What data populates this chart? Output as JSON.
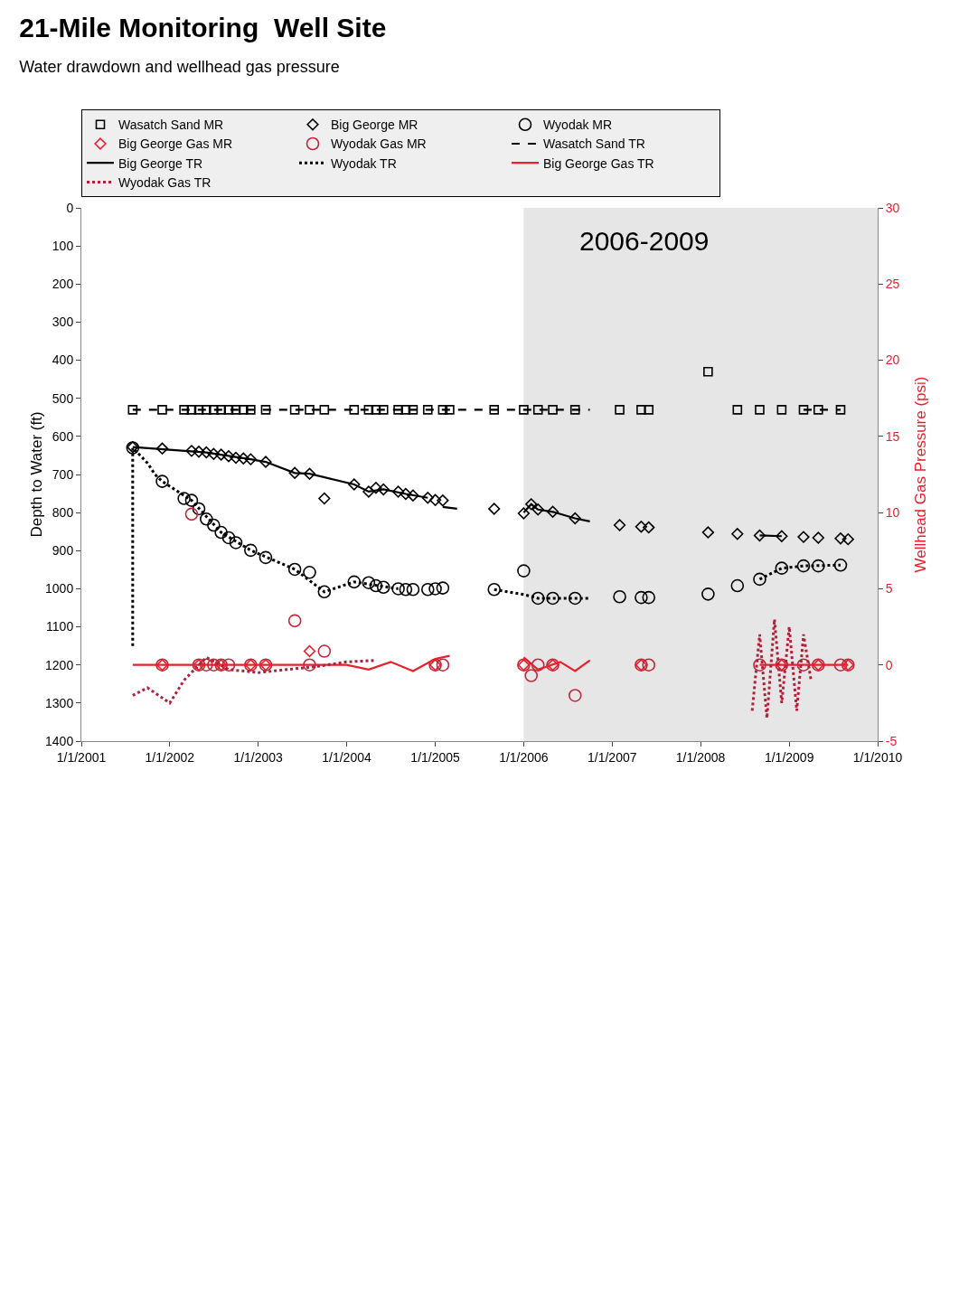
{
  "chart_data": {
    "type": "line",
    "title": "21-Mile Monitoring  Well Site",
    "subtitle": "Water drawdown and wellhead gas pressure",
    "ylabel": "Depth to Water (ft)",
    "y2label": "Wellhead Gas Pressure (psi)",
    "xlim": [
      "2001-01",
      "2010-01"
    ],
    "xticks": [
      {
        "value": "2001-01",
        "label": "1/1/2001"
      },
      {
        "value": "2002-01",
        "label": "1/1/2002"
      },
      {
        "value": "2003-01",
        "label": "1/1/2003"
      },
      {
        "value": "2004-01",
        "label": "1/1/2004"
      },
      {
        "value": "2005-01",
        "label": "1/1/2005"
      },
      {
        "value": "2006-01",
        "label": "1/1/2006"
      },
      {
        "value": "2007-01",
        "label": "1/1/2007"
      },
      {
        "value": "2008-01",
        "label": "1/1/2008"
      },
      {
        "value": "2009-01",
        "label": "1/1/2009"
      },
      {
        "value": "2010-01",
        "label": "1/1/2010"
      }
    ],
    "ylim": [
      1400,
      0
    ],
    "yticks": [
      0,
      100,
      200,
      300,
      400,
      500,
      600,
      700,
      800,
      900,
      1000,
      1100,
      1200,
      1300,
      1400
    ],
    "y2lim": [
      -5,
      30
    ],
    "y2ticks": [
      -5,
      0,
      5,
      10,
      15,
      20,
      25,
      30
    ],
    "legend": "top left",
    "bands": [
      {
        "axis": "x",
        "from": "2006-01",
        "to": "2010-01",
        "label": "2006-2009",
        "color": "#e6e6e6"
      }
    ],
    "series": [
      {
        "name": "Wasatch Sand MR",
        "type": "scatter",
        "marker": "square",
        "color": "#000000",
        "x": [
          "2001-08",
          "2001-12",
          "2002-03",
          "2002-04",
          "2002-05",
          "2002-06",
          "2002-07",
          "2002-08",
          "2002-09",
          "2002-10",
          "2002-11",
          "2002-12",
          "2003-02",
          "2003-06",
          "2003-08",
          "2003-10",
          "2004-02",
          "2004-04",
          "2004-05",
          "2004-06",
          "2004-08",
          "2004-09",
          "2004-10",
          "2004-12",
          "2005-02",
          "2005-03",
          "2005-09",
          "2006-01",
          "2006-03",
          "2006-05",
          "2006-08",
          "2007-02",
          "2007-05",
          "2007-06",
          "2008-02",
          "2008-06",
          "2008-09",
          "2008-12",
          "2009-03",
          "2009-05",
          "2009-08"
        ],
        "values": [
          530,
          530,
          530,
          530,
          530,
          530,
          530,
          530,
          530,
          530,
          530,
          530,
          530,
          530,
          530,
          530,
          530,
          530,
          530,
          530,
          530,
          530,
          530,
          530,
          530,
          530,
          530,
          530,
          530,
          530,
          530,
          530,
          530,
          530,
          430,
          530,
          530,
          530,
          530,
          530,
          530
        ]
      },
      {
        "name": "Big George MR",
        "type": "scatter",
        "marker": "diamond",
        "color": "#000000",
        "x": [
          "2001-08",
          "2001-12",
          "2002-04",
          "2002-05",
          "2002-06",
          "2002-07",
          "2002-08",
          "2002-09",
          "2002-10",
          "2002-11",
          "2002-12",
          "2003-02",
          "2003-06",
          "2003-08",
          "2003-10",
          "2004-02",
          "2004-04",
          "2004-05",
          "2004-06",
          "2004-08",
          "2004-09",
          "2004-10",
          "2004-12",
          "2005-01",
          "2005-02",
          "2005-09",
          "2006-01",
          "2006-02",
          "2006-03",
          "2006-05",
          "2006-08",
          "2007-02",
          "2007-05",
          "2007-06",
          "2008-02",
          "2008-06",
          "2008-09",
          "2008-12",
          "2009-03",
          "2009-05",
          "2009-08",
          "2009-09"
        ],
        "values": [
          628,
          632,
          638,
          640,
          642,
          646,
          648,
          652,
          656,
          658,
          660,
          667,
          696,
          698,
          763,
          726,
          745,
          735,
          739,
          745,
          751,
          755,
          761,
          767,
          768,
          790,
          802,
          778,
          792,
          798,
          815,
          833,
          837,
          839,
          852,
          856,
          860,
          862,
          864,
          866,
          868,
          870
        ]
      },
      {
        "name": "Wyodak MR",
        "type": "scatter",
        "marker": "circle",
        "color": "#000000",
        "x": [
          "2001-08",
          "2001-12",
          "2002-03",
          "2002-04",
          "2002-05",
          "2002-06",
          "2002-07",
          "2002-08",
          "2002-09",
          "2002-10",
          "2002-12",
          "2003-02",
          "2003-06",
          "2003-08",
          "2003-10",
          "2004-02",
          "2004-04",
          "2004-05",
          "2004-06",
          "2004-08",
          "2004-09",
          "2004-10",
          "2004-12",
          "2005-01",
          "2005-02",
          "2005-09",
          "2006-01",
          "2006-03",
          "2006-05",
          "2006-08",
          "2007-02",
          "2007-05",
          "2007-06",
          "2008-02",
          "2008-06",
          "2008-09",
          "2008-12",
          "2009-03",
          "2009-05",
          "2009-08"
        ],
        "values": [
          630,
          718,
          763,
          768,
          790,
          817,
          833,
          852,
          866,
          879,
          899,
          918,
          949,
          957,
          1008,
          982,
          984,
          992,
          996,
          1000,
          1002,
          1002,
          1002,
          1000,
          998,
          1002,
          953,
          1025,
          1025,
          1025,
          1021,
          1023,
          1023,
          1014,
          992,
          975,
          946,
          940,
          940,
          938
        ]
      },
      {
        "name": "Big George Gas MR",
        "type": "scatter",
        "marker": "diamond",
        "color": "#e8202a",
        "axis": "y2",
        "x": [
          "2001-12",
          "2002-05",
          "2002-08",
          "2002-12",
          "2003-02",
          "2003-08",
          "2005-01",
          "2006-01",
          "2006-05",
          "2007-05",
          "2008-12",
          "2009-05",
          "2009-09"
        ],
        "values": [
          0,
          0,
          0,
          0,
          0,
          0.9,
          0,
          0,
          0,
          0,
          0,
          0,
          0
        ]
      },
      {
        "name": "Wyodak Gas MR",
        "type": "scatter",
        "marker": "circle",
        "color": "#c0283c",
        "axis": "y2",
        "x": [
          "2001-12",
          "2002-04",
          "2002-05",
          "2002-06",
          "2002-07",
          "2002-08",
          "2002-09",
          "2002-12",
          "2003-02",
          "2003-06",
          "2003-08",
          "2003-10",
          "2005-01",
          "2005-02",
          "2006-01",
          "2006-02",
          "2006-03",
          "2006-05",
          "2006-08",
          "2007-05",
          "2007-06",
          "2008-09",
          "2008-12",
          "2009-03",
          "2009-05",
          "2009-08",
          "2009-09"
        ],
        "values": [
          0,
          9.9,
          0,
          0,
          0,
          0,
          0,
          0,
          0,
          2.9,
          0,
          0.9,
          0,
          0,
          0,
          -0.7,
          0,
          0,
          -2,
          0,
          0,
          0,
          0,
          0,
          0,
          0,
          0
        ]
      },
      {
        "name": "Wasatch Sand TR",
        "line_style": "dashed",
        "color": "#000000",
        "x": [
          "2001-08",
          "2006-10",
          "2008-01",
          "2009-03",
          "2009-08"
        ],
        "values": [
          530,
          530,
          null,
          530,
          530
        ]
      },
      {
        "name": "Big George TR",
        "line_style": "solid",
        "color": "#000000",
        "x": [
          "2001-08",
          "2002-06",
          "2002-12",
          "2003-02",
          "2003-06",
          "2003-08",
          "2004-02",
          "2004-04",
          "2004-06",
          "2004-09",
          "2004-12",
          "2005-01",
          "2005-02",
          "2005-04",
          "2005-10",
          "2006-01",
          "2006-02",
          "2006-03",
          "2006-05",
          "2006-08",
          "2006-10",
          "2007-06",
          "2008-09",
          "2008-12"
        ],
        "values": [
          628,
          642,
          660,
          667,
          696,
          698,
          726,
          745,
          739,
          751,
          761,
          null,
          785,
          790,
          null,
          800,
          778,
          792,
          798,
          815,
          823,
          null,
          860,
          862
        ]
      },
      {
        "name": "Wyodak TR",
        "line_style": "dotted",
        "color": "#000000",
        "x": [
          "2001-08",
          "2001-08",
          "2001-09",
          "2001-10",
          "2001-11",
          "2001-12",
          "2002-04",
          "2002-08",
          "2002-12",
          "2003-06",
          "2003-10",
          "2004-02",
          "2004-08",
          "2004-10",
          "2005-09",
          "2006-01",
          "2006-03",
          "2006-10",
          "2007-06",
          "2008-09",
          "2008-12",
          "2009-03",
          "2009-08"
        ],
        "values": [
          1150,
          630,
          650,
          670,
          700,
          718,
          768,
          852,
          899,
          949,
          1008,
          982,
          1000,
          null,
          1002,
          1015,
          1025,
          1025,
          null,
          975,
          946,
          940,
          938
        ]
      },
      {
        "name": "Big George Gas TR",
        "line_style": "solid",
        "color": "#e8202a",
        "axis": "y2",
        "x": [
          "2001-08",
          "2004-01",
          "2004-04",
          "2004-07",
          "2004-10",
          "2005-01",
          "2005-03",
          "2005-08",
          "2006-01",
          "2006-03",
          "2006-06",
          "2006-08",
          "2006-10",
          "2007-06",
          "2008-09",
          "2009-09"
        ],
        "values": [
          0,
          0,
          -0.3,
          0.2,
          -0.4,
          0.4,
          0.6,
          null,
          0.5,
          -0.3,
          0.2,
          -0.4,
          0.3,
          null,
          0,
          0
        ]
      },
      {
        "name": "Wyodak Gas TR",
        "line_style": "dotted",
        "color": "#b0203a",
        "axis": "y2",
        "x": [
          "2001-08",
          "2001-10",
          "2002-01",
          "2002-03",
          "2002-06",
          "2002-09",
          "2003-01",
          "2003-05",
          "2003-09",
          "2004-01",
          "2004-05",
          "2004-06",
          "2008-08",
          "2008-09",
          "2008-10",
          "2008-11",
          "2008-12",
          "2009-01",
          "2009-02",
          "2009-03",
          "2009-04"
        ],
        "values": [
          -2,
          -1.5,
          -2.5,
          -1,
          0.5,
          -0.3,
          -0.5,
          -0.3,
          -0.1,
          0.2,
          0.3,
          null,
          -3,
          2,
          -3.5,
          3,
          -2.5,
          2.5,
          -3,
          2,
          -1
        ]
      }
    ]
  }
}
